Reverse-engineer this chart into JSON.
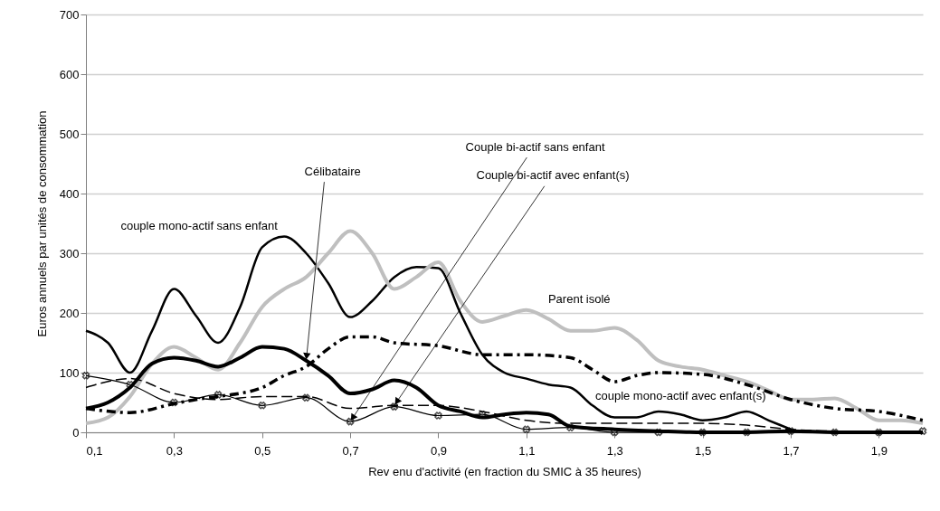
{
  "chart_data": {
    "type": "line",
    "xlabel": "Rev enu d'activité (en fraction du SMIC à 35 heures)",
    "ylabel": "Euros annuels par unités de consommation",
    "xlim": [
      0.1,
      2.0
    ],
    "xticks": [
      {
        "value": 0.1,
        "label": "0,1"
      },
      {
        "value": 0.3,
        "label": "0,3"
      },
      {
        "value": 0.5,
        "label": "0,5"
      },
      {
        "value": 0.7,
        "label": "0,7"
      },
      {
        "value": 0.9,
        "label": "0,9"
      },
      {
        "value": 1.1,
        "label": "1,1"
      },
      {
        "value": 1.3,
        "label": "1,3"
      },
      {
        "value": 1.5,
        "label": "1,5"
      },
      {
        "value": 1.7,
        "label": "1,7"
      },
      {
        "value": 1.9,
        "label": "1,9"
      }
    ],
    "ylim": [
      0,
      700
    ],
    "yticks": [
      0,
      100,
      200,
      300,
      400,
      500,
      600,
      700
    ],
    "grid": "y",
    "legend": false,
    "series": [
      {
        "name": "couple mono-actif sans enfant",
        "color": "#000000",
        "line_style": "solid",
        "marker": "none",
        "x": [
          0.1,
          0.15,
          0.2,
          0.25,
          0.3,
          0.35,
          0.4,
          0.45,
          0.5,
          0.55,
          0.6,
          0.65,
          0.7,
          0.75,
          0.8,
          0.85,
          0.9,
          0.95,
          1.0,
          1.05,
          1.1,
          1.15,
          1.2,
          1.25,
          1.3,
          1.35,
          1.4,
          1.45,
          1.5,
          1.55,
          1.6,
          1.65,
          1.7
        ],
        "values": [
          170,
          150,
          100,
          170,
          240,
          195,
          150,
          210,
          310,
          328,
          300,
          250,
          193,
          220,
          260,
          277,
          275,
          200,
          130,
          100,
          90,
          80,
          75,
          45,
          25,
          25,
          35,
          30,
          20,
          25,
          35,
          20,
          5
        ]
      },
      {
        "name": "Parent isolé",
        "color": "#bfbfbf",
        "line_style": "solid",
        "marker": "none",
        "x": [
          0.1,
          0.15,
          0.2,
          0.25,
          0.3,
          0.35,
          0.4,
          0.45,
          0.5,
          0.55,
          0.6,
          0.65,
          0.7,
          0.75,
          0.8,
          0.85,
          0.9,
          0.95,
          1.0,
          1.05,
          1.1,
          1.15,
          1.2,
          1.25,
          1.3,
          1.35,
          1.4,
          1.45,
          1.5,
          1.55,
          1.6,
          1.65,
          1.7,
          1.75,
          1.8,
          1.85,
          1.9,
          1.95,
          2.0
        ],
        "values": [
          15,
          25,
          60,
          115,
          143,
          125,
          105,
          150,
          210,
          240,
          260,
          300,
          337,
          300,
          240,
          260,
          285,
          220,
          185,
          195,
          205,
          190,
          170,
          170,
          175,
          155,
          120,
          110,
          105,
          95,
          85,
          70,
          55,
          55,
          57,
          40,
          20,
          20,
          15
        ]
      },
      {
        "name": "Célibataire",
        "color": "#000000",
        "line_style": "solid",
        "marker": "none",
        "x": [
          0.1,
          0.15,
          0.2,
          0.25,
          0.3,
          0.35,
          0.4,
          0.45,
          0.5,
          0.55,
          0.6,
          0.65,
          0.7,
          0.75,
          0.8,
          0.85,
          0.9,
          0.95,
          1.0,
          1.05,
          1.1,
          1.15,
          1.2,
          1.3,
          1.4,
          1.5,
          1.6,
          1.7,
          1.8,
          1.9,
          2.0
        ],
        "values": [
          40,
          50,
          75,
          115,
          125,
          120,
          110,
          125,
          143,
          140,
          120,
          95,
          65,
          72,
          87,
          75,
          45,
          35,
          25,
          30,
          33,
          30,
          10,
          5,
          2,
          0,
          0,
          2,
          0,
          0,
          0
        ]
      },
      {
        "name": "couple mono-actif avec enfant(s)",
        "color": "#000000",
        "line_style": "dashed",
        "marker": "none",
        "x": [
          0.1,
          0.2,
          0.3,
          0.35,
          0.4,
          0.5,
          0.55,
          0.6,
          0.65,
          0.7,
          0.75,
          0.8,
          0.9,
          1.0,
          1.1,
          1.2,
          1.25,
          1.3,
          1.35,
          1.4,
          1.5,
          1.6,
          1.7,
          1.8,
          1.9,
          2.0
        ],
        "values": [
          40,
          33,
          48,
          55,
          60,
          75,
          95,
          110,
          140,
          160,
          160,
          150,
          145,
          130,
          130,
          125,
          105,
          85,
          95,
          100,
          97,
          80,
          55,
          40,
          35,
          20
        ]
      },
      {
        "name": "Couple bi-actif sans enfant",
        "color": "#000000",
        "line_style": "solid",
        "marker": "cross",
        "x": [
          0.1,
          0.2,
          0.3,
          0.4,
          0.5,
          0.6,
          0.7,
          0.8,
          0.9,
          1.0,
          1.1,
          1.2,
          1.3,
          1.4,
          1.5,
          1.6,
          1.7,
          1.8,
          1.9,
          2.0
        ],
        "values": [
          95,
          80,
          50,
          63,
          45,
          58,
          18,
          43,
          28,
          30,
          5,
          8,
          0,
          0,
          0,
          0,
          2,
          0,
          0,
          2
        ]
      },
      {
        "name": "Couple bi-actif avec enfant(s)",
        "color": "#000000",
        "line_style": "dashed",
        "marker": "none",
        "x": [
          0.1,
          0.2,
          0.3,
          0.4,
          0.5,
          0.6,
          0.7,
          0.8,
          0.9,
          1.0,
          1.1,
          1.2,
          1.3,
          1.4,
          1.5,
          1.6,
          1.7,
          1.8,
          1.9,
          2.0
        ],
        "values": [
          75,
          90,
          65,
          55,
          60,
          60,
          40,
          45,
          45,
          35,
          20,
          15,
          15,
          15,
          15,
          12,
          5,
          2,
          2,
          2
        ]
      }
    ]
  }
}
